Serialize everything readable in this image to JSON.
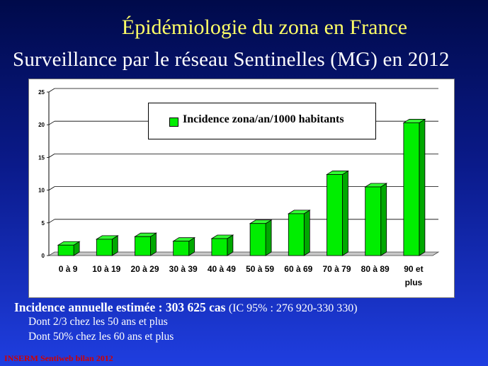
{
  "slide": {
    "title": "Épidémiologie du zona en France",
    "subtitle": "Surveillance par le réseau Sentinelles (MG) en 2012"
  },
  "chart_data": {
    "type": "bar",
    "categories": [
      "0 à 9",
      "10 à 19",
      "20 à 29",
      "30 à 39",
      "40 à 49",
      "50 à 59",
      "60 à 69",
      "70 à 79",
      "80 à 89",
      "90 et plus"
    ],
    "series": [
      {
        "name": "Incidence zona/an/1000 habitants",
        "values": [
          1.6,
          2.5,
          2.9,
          2.2,
          2.6,
          4.9,
          6.4,
          12.4,
          10.5,
          20.3
        ]
      }
    ],
    "yticks": [
      "0",
      "5",
      "10",
      "15",
      "20",
      "25"
    ],
    "ylim": [
      0,
      25
    ],
    "grid": true,
    "legend_position": "top-center",
    "bar_color": "#00ee00",
    "style": "3d"
  },
  "footer": {
    "main_bold": "Incidence annuelle estimée : 303 625 cas",
    "main_ci": "(IC 95% : 276 920-330 330)",
    "line1": "Dont 2/3 chez les 50 ans et plus",
    "line2": "Dont 50% chez les 60 ans et plus",
    "source": "INSERM Sentiweb bilan 2012"
  }
}
